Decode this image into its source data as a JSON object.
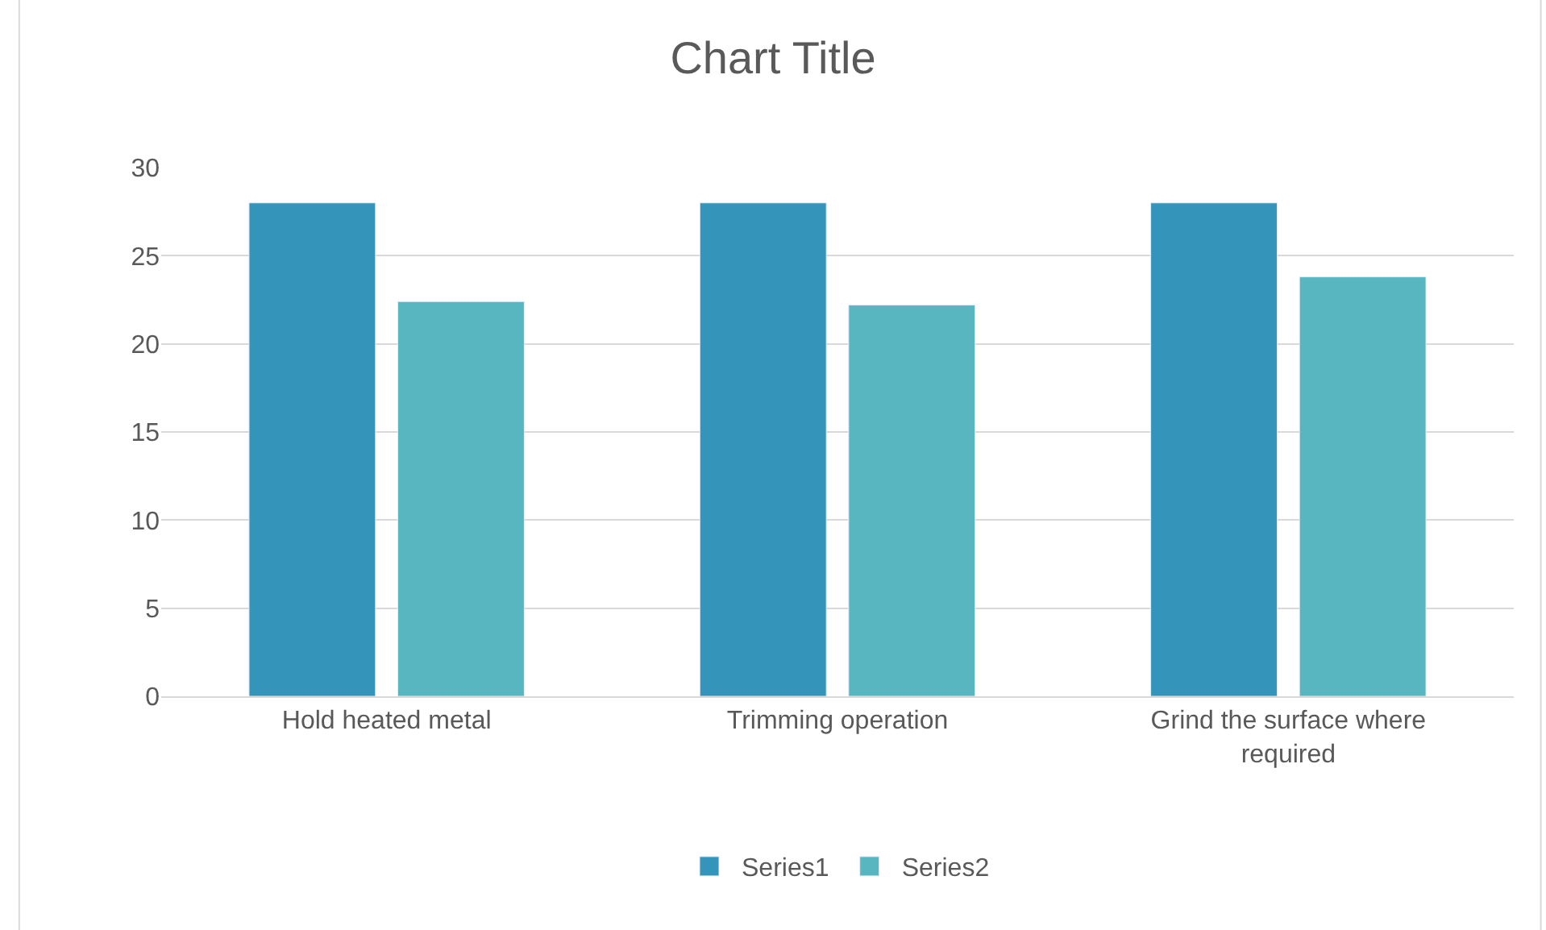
{
  "chart_data": {
    "type": "bar",
    "title": "Chart Title",
    "categories": [
      "Hold heated metal",
      "Trimming operation",
      "Grind the surface where required"
    ],
    "series": [
      {
        "name": "Series1",
        "color": "#3494ba",
        "values": [
          28,
          28,
          28
        ]
      },
      {
        "name": "Series2",
        "color": "#58b6c0",
        "values": [
          22.4,
          22.2,
          23.8
        ]
      }
    ],
    "ylim": [
      0,
      30
    ],
    "yticks": [
      0,
      5,
      10,
      15,
      20,
      25,
      30
    ],
    "grid": "y",
    "legend": "bottom"
  }
}
